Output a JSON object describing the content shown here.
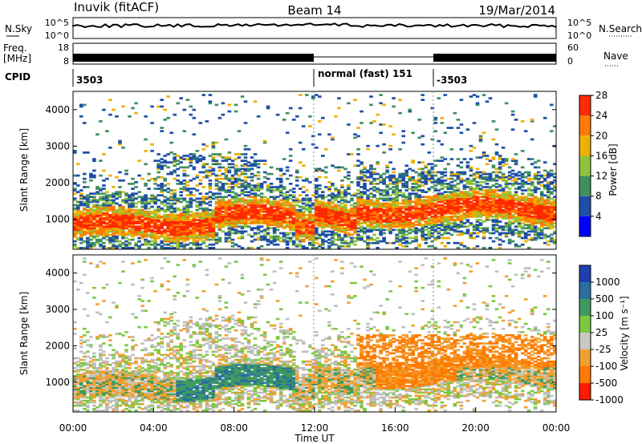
{
  "header": {
    "station": "Inuvik (fitACF)",
    "beam": "Beam 14",
    "date": "19/Mar/2014"
  },
  "strip": {
    "nsky_label": "N.Sky",
    "nsearch_label": "N.Search",
    "freq_label_1": "Freq.",
    "freq_label_2": "[MHz]",
    "nave_label": "Nave",
    "cpid_label": "CPID",
    "noise_ticks": [
      "10^5",
      "10^0"
    ],
    "freq_ticks": [
      "18",
      "8"
    ],
    "nave_ticks": [
      "60",
      "0"
    ],
    "cpid_segments": [
      "3503",
      "normal (fast) 151",
      "-3503"
    ]
  },
  "chart_data": [
    {
      "type": "heatmap",
      "panel": "power",
      "ylabel": "Slant Range [km]",
      "ylim": [
        180,
        4500
      ],
      "yticks": [
        1000,
        2000,
        3000,
        4000
      ],
      "xlim": [
        0,
        24
      ],
      "colorbar_label": "Power [dB]",
      "colorbar_ticks": [
        "4",
        "8",
        "12",
        "16",
        "20",
        "24",
        "28"
      ],
      "colors": [
        "#0000ff",
        "#1f4ea8",
        "#3f8f5f",
        "#8fc33c",
        "#f0b000",
        "#ff7a00",
        "#ff2a00"
      ],
      "dominant_bands": [
        {
          "from_hour": 0,
          "to_hour": 12,
          "center_km": 900,
          "width_km": 450,
          "level": "24-28"
        },
        {
          "from_hour": 14,
          "to_hour": 24,
          "center_km": 1300,
          "width_km": 600,
          "level": "20-28"
        }
      ]
    },
    {
      "type": "heatmap",
      "panel": "velocity",
      "ylabel": "Slant Range [km]",
      "ylim": [
        180,
        4500
      ],
      "yticks": [
        1000,
        2000,
        3000,
        4000
      ],
      "xlim": [
        0,
        24
      ],
      "xlabel": "Time UT",
      "xtick_labels": [
        "00:00",
        "04:00",
        "08:00",
        "12:00",
        "16:00",
        "20:00",
        "00:00"
      ],
      "colorbar_label": "Velocity [m s⁻¹]",
      "colorbar_ticks": [
        "1000",
        "500",
        "100",
        "25",
        "-25",
        "-100",
        "-500",
        "-1000"
      ],
      "colors": [
        "#1f3fb0",
        "#2b6f9e",
        "#3f9a5f",
        "#7cc840",
        "#c8c8c0",
        "#f0a030",
        "#ff7a00",
        "#ff1a00"
      ],
      "ground_scatter_color": "#bebebe"
    }
  ]
}
